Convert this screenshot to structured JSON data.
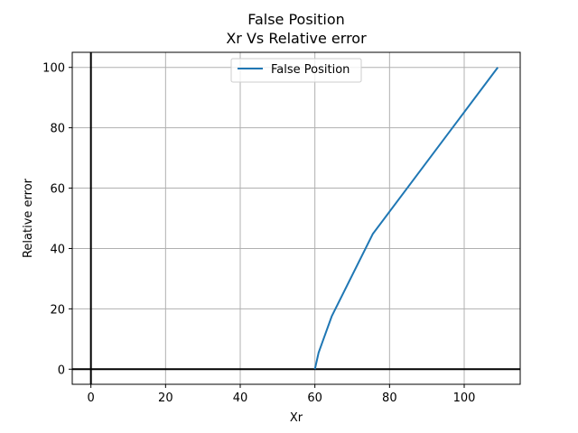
{
  "chart_data": {
    "type": "line",
    "title": "False Position",
    "subtitle": "Xr Vs Relative error",
    "xlabel": "Xr",
    "ylabel": "Relative error",
    "xlim": [
      -5,
      115
    ],
    "ylim": [
      -5,
      105
    ],
    "xticks": [
      0,
      20,
      40,
      60,
      80,
      100
    ],
    "yticks": [
      0,
      20,
      40,
      60,
      80,
      100
    ],
    "grid": true,
    "legend_position": "top-center",
    "reference_lines": {
      "x": 0,
      "y": 0,
      "color": "#000000"
    },
    "series": [
      {
        "name": "False Position",
        "color": "#1f77b4",
        "x": [
          60.0,
          61.0,
          64.5,
          75.5,
          109.0
        ],
        "y": [
          0.0,
          5.5,
          17.5,
          44.8,
          100.0
        ]
      }
    ]
  }
}
